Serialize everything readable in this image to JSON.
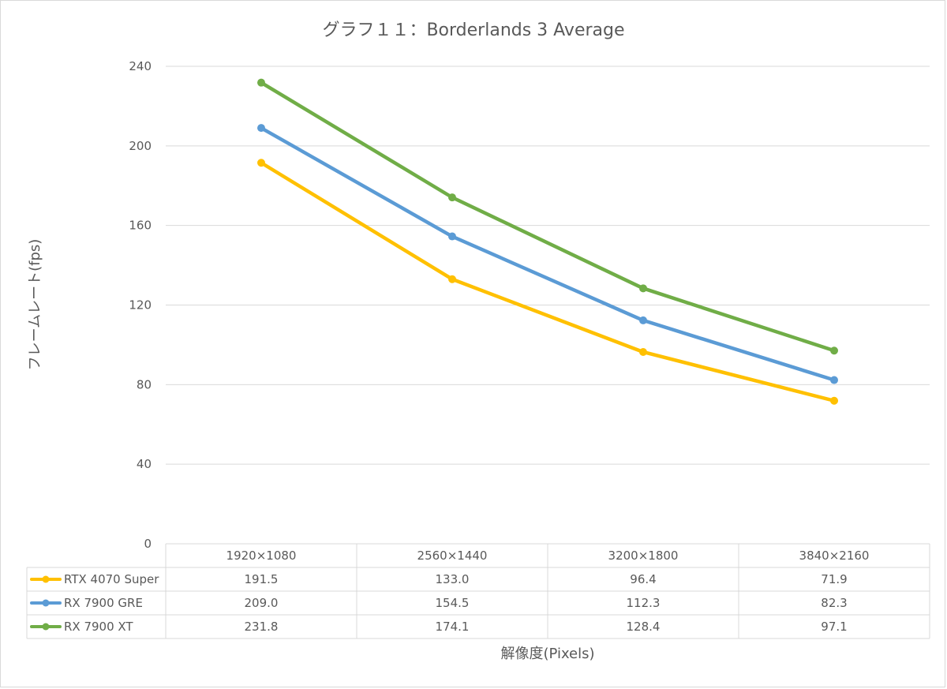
{
  "chart_data": {
    "type": "line",
    "title": "グラフ１１：Borderlands 3 Average",
    "xlabel": "解像度(Pixels)",
    "ylabel": "フレームレート(fps)",
    "categories": [
      "1920×1080",
      "2560×1440",
      "3200×1800",
      "3840×2160"
    ],
    "ylim": [
      0,
      240
    ],
    "yticks": [
      0,
      40,
      80,
      120,
      160,
      200,
      240
    ],
    "grid": true,
    "legend": "data-table",
    "series": [
      {
        "name": "RTX 4070 Super",
        "color": "#ffc000",
        "values": [
          191.5,
          133.0,
          96.4,
          71.9
        ],
        "labels": [
          "191.5",
          "133.0",
          "96.4",
          "71.9"
        ]
      },
      {
        "name": "RX 7900 GRE",
        "color": "#5b9bd5",
        "values": [
          209.0,
          154.5,
          112.3,
          82.3
        ],
        "labels": [
          "209.0",
          "154.5",
          "112.3",
          "82.3"
        ]
      },
      {
        "name": "RX 7900 XT",
        "color": "#70ad47",
        "values": [
          231.8,
          174.1,
          128.4,
          97.1
        ],
        "labels": [
          "231.8",
          "174.1",
          "128.4",
          "97.1"
        ]
      }
    ]
  }
}
